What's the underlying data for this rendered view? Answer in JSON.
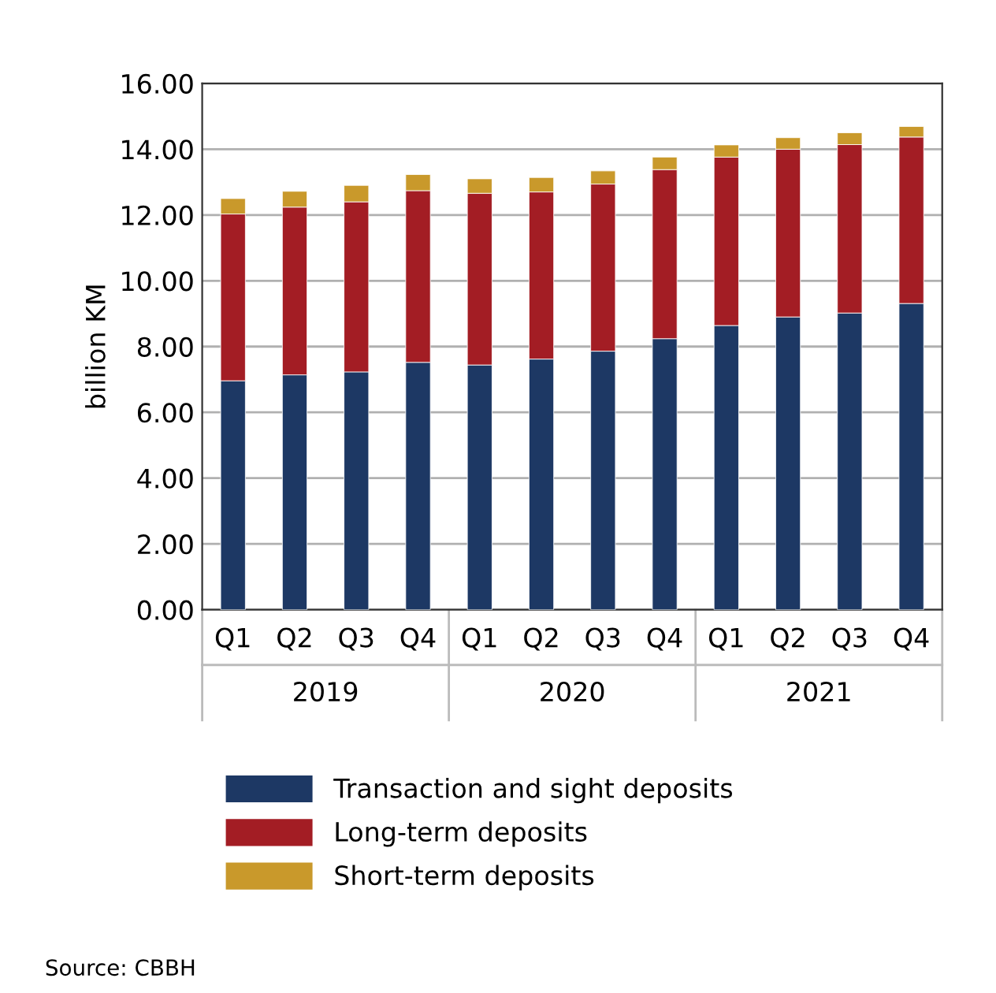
{
  "chart_data": {
    "type": "bar",
    "stacked": true,
    "ylabel": "billion KM",
    "categories": [
      "Q1",
      "Q2",
      "Q3",
      "Q4",
      "Q1",
      "Q2",
      "Q3",
      "Q4",
      "Q1",
      "Q2",
      "Q3",
      "Q4"
    ],
    "series": [
      {
        "name": "Transaction and sight deposits",
        "color": "#1d3864",
        "values": [
          6.96,
          7.14,
          7.23,
          7.52,
          7.44,
          7.62,
          7.86,
          8.24,
          8.64,
          8.9,
          9.02,
          9.31
        ]
      },
      {
        "name": "Long-term deposits",
        "color": "#a31d24",
        "values": [
          5.07,
          5.1,
          5.17,
          5.22,
          5.22,
          5.08,
          5.08,
          5.14,
          5.12,
          5.1,
          5.12,
          5.06
        ]
      },
      {
        "name": "Short-term deposits",
        "color": "#c9992b",
        "values": [
          0.47,
          0.48,
          0.5,
          0.49,
          0.44,
          0.44,
          0.4,
          0.38,
          0.37,
          0.35,
          0.36,
          0.32
        ]
      }
    ],
    "ylim": [
      0,
      16
    ],
    "yticks": [
      {
        "value": 0,
        "label": "0.00"
      },
      {
        "value": 2,
        "label": "2.00"
      },
      {
        "value": 4,
        "label": "4.00"
      },
      {
        "value": 6,
        "label": "6.00"
      },
      {
        "value": 8,
        "label": "8.00"
      },
      {
        "value": 10,
        "label": "10.00"
      },
      {
        "value": 12,
        "label": "12.00"
      },
      {
        "value": 14,
        "label": "14.00"
      },
      {
        "value": 16,
        "label": "16.00"
      }
    ],
    "grid": "y",
    "legend": "bottom",
    "annotations": [
      "2019",
      "2020",
      "2021",
      "Source: CBBH"
    ]
  }
}
